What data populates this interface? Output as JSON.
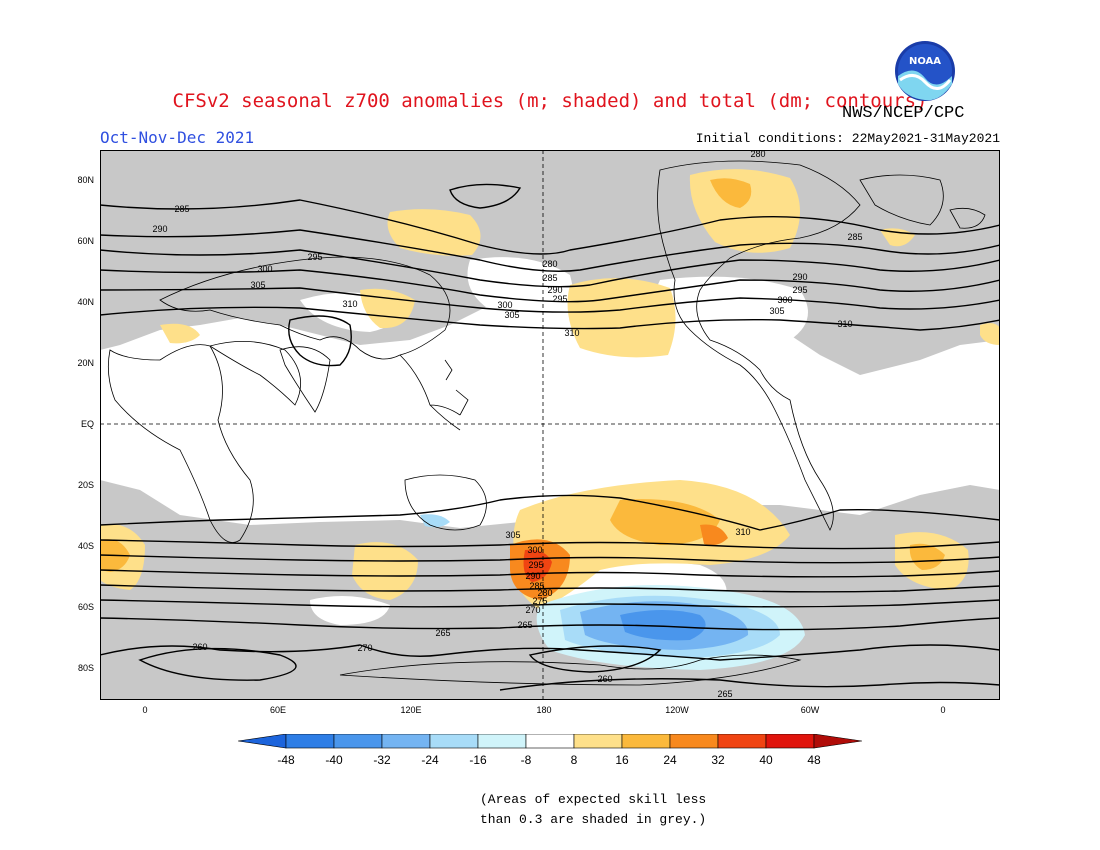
{
  "title": "CFSv2 seasonal z700 anomalies (m; shaded) and total (dm; contours)",
  "agency": "NWS/NCEP/CPC",
  "logo_text": "NOAA",
  "period": "Oct-Nov-Dec 2021",
  "initial_conditions": "Initial conditions: 22May2021-31May2021",
  "lat_labels": [
    "80N",
    "60N",
    "40N",
    "20N",
    "EQ",
    "20S",
    "40S",
    "60S",
    "80S"
  ],
  "lon_labels": [
    "0",
    "60E",
    "120E",
    "180",
    "120W",
    "60W",
    "0"
  ],
  "colorbar": {
    "tick_labels": [
      "-48",
      "-40",
      "-32",
      "-24",
      "-16",
      "-8",
      "8",
      "16",
      "24",
      "32",
      "40",
      "48"
    ],
    "colors": [
      "#1c64dc",
      "#2e7ee6",
      "#4a96ec",
      "#74b4f2",
      "#a8dcf8",
      "#d0f4fa",
      "#ffffff",
      "#fee08a",
      "#fbb93c",
      "#f8891e",
      "#f04412",
      "#e0140c",
      "#b00c08"
    ]
  },
  "contour_labels": [
    "280",
    "285",
    "290",
    "295",
    "300",
    "305",
    "310",
    "280",
    "285",
    "290",
    "295",
    "300",
    "305",
    "310",
    "285",
    "290",
    "295",
    "300",
    "305",
    "310",
    "260",
    "265",
    "270",
    "275",
    "280",
    "285",
    "290",
    "295",
    "300",
    "305",
    "310",
    "265",
    "270",
    "260",
    "265"
  ],
  "skill_note_line1": "(Areas of expected skill less",
  "skill_note_line2": "than 0.3 are shaded in grey.)"
}
